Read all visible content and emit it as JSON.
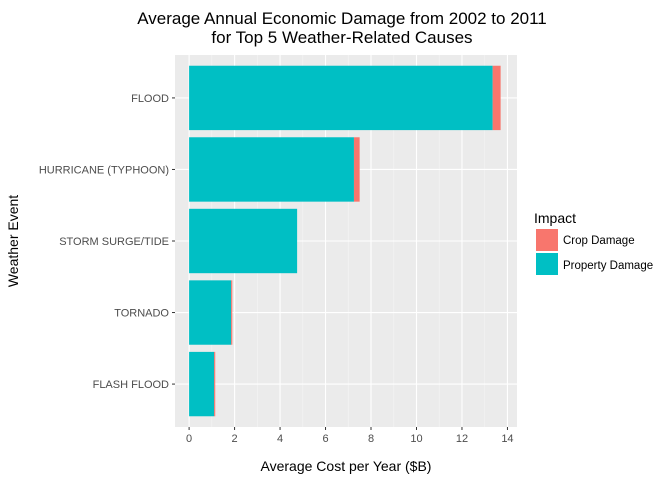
{
  "chart_data": {
    "type": "bar",
    "orientation": "horizontal",
    "stacked": true,
    "title_lines": [
      "Average Annual Economic Damage from 2002 to 2011",
      "for Top 5 Weather-Related Causes"
    ],
    "xlabel": "Average Cost per Year ($B)",
    "ylabel": "Weather Event",
    "categories": [
      "FLOOD",
      "HURRICANE (TYPHOON)",
      "STORM SURGE/TIDE",
      "TORNADO",
      "FLASH FLOOD"
    ],
    "series": [
      {
        "name": "Property Damage",
        "color": "#00BFC4",
        "values": [
          13.35,
          7.25,
          4.75,
          1.85,
          1.1
        ]
      },
      {
        "name": "Crop Damage",
        "color": "#F8766D",
        "values": [
          0.35,
          0.25,
          0.0,
          0.05,
          0.05
        ]
      }
    ],
    "xlim": [
      -0.62,
      14.42
    ],
    "xticks": [
      0,
      2,
      4,
      6,
      8,
      10,
      12,
      14
    ],
    "grid": true,
    "background": "#EBEBEB",
    "legend": {
      "title": "Impact",
      "placement": "right",
      "entries": [
        "Crop Damage",
        "Property Damage"
      ]
    }
  }
}
